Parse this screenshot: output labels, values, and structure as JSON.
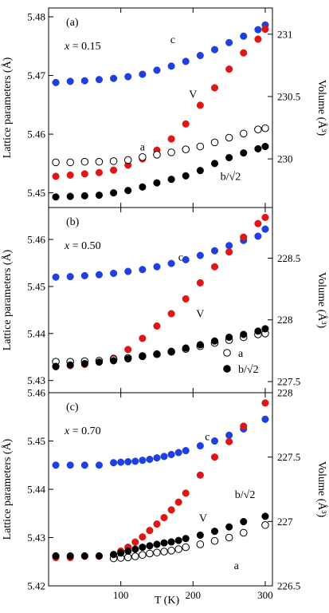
{
  "chart_data": [
    {
      "type": "scatter",
      "panel_label": "(a)",
      "composition": "x = 0.15",
      "ylabel_left": "Lattice parameters (Å)",
      "ylabel_right": "Volume (Å³)",
      "xlim": [
        0,
        310
      ],
      "ylim_left": [
        5.4475,
        5.4815
      ],
      "ylim_right": [
        229.61,
        231.21
      ],
      "yticks_left": [
        "5.45",
        "5.46",
        "5.47",
        "5.48"
      ],
      "yticks_right": [
        "230",
        "230.5",
        "231"
      ],
      "labels": {
        "c": "c",
        "V": "V",
        "a": "a",
        "b": "b/√2"
      },
      "series": [
        {
          "name": "c",
          "axis": "left",
          "color": "#1f3fe0",
          "marker": "filled",
          "points": [
            [
              10,
              5.4688
            ],
            [
              30,
              5.469
            ],
            [
              50,
              5.4691
            ],
            [
              70,
              5.4693
            ],
            [
              90,
              5.4695
            ],
            [
              110,
              5.4698
            ],
            [
              130,
              5.4702
            ],
            [
              150,
              5.4709
            ],
            [
              170,
              5.4716
            ],
            [
              190,
              5.4724
            ],
            [
              210,
              5.4734
            ],
            [
              230,
              5.4744
            ],
            [
              250,
              5.4756
            ],
            [
              270,
              5.4767
            ],
            [
              290,
              5.4778
            ],
            [
              300,
              5.4786
            ]
          ]
        },
        {
          "name": "V",
          "axis": "right",
          "color": "#e01515",
          "marker": "filled",
          "points": [
            [
              10,
              229.86
            ],
            [
              30,
              229.87
            ],
            [
              50,
              229.88
            ],
            [
              70,
              229.89
            ],
            [
              90,
              229.91
            ],
            [
              110,
              229.95
            ],
            [
              130,
              230.0
            ],
            [
              150,
              230.07
            ],
            [
              170,
              230.16
            ],
            [
              190,
              230.28
            ],
            [
              210,
              230.43
            ],
            [
              230,
              230.57
            ],
            [
              250,
              230.72
            ],
            [
              270,
              230.85
            ],
            [
              290,
              230.96
            ],
            [
              300,
              231.04
            ]
          ]
        },
        {
          "name": "a",
          "axis": "left",
          "color": "#000000",
          "marker": "open",
          "points": [
            [
              10,
              5.4552
            ],
            [
              30,
              5.4552
            ],
            [
              50,
              5.4553
            ],
            [
              70,
              5.4553
            ],
            [
              90,
              5.4554
            ],
            [
              110,
              5.4556
            ],
            [
              130,
              5.4561
            ],
            [
              150,
              5.4565
            ],
            [
              170,
              5.4569
            ],
            [
              190,
              5.4574
            ],
            [
              210,
              5.4579
            ],
            [
              230,
              5.4586
            ],
            [
              250,
              5.4594
            ],
            [
              270,
              5.4601
            ],
            [
              290,
              5.4608
            ],
            [
              300,
              5.461
            ]
          ]
        },
        {
          "name": "b/√2",
          "axis": "left",
          "color": "#000000",
          "marker": "filled",
          "points": [
            [
              10,
              5.4493
            ],
            [
              30,
              5.4494
            ],
            [
              50,
              5.4495
            ],
            [
              70,
              5.4496
            ],
            [
              90,
              5.45
            ],
            [
              110,
              5.4504
            ],
            [
              130,
              5.451
            ],
            [
              150,
              5.4517
            ],
            [
              170,
              5.4523
            ],
            [
              190,
              5.4529
            ],
            [
              210,
              5.4538
            ],
            [
              230,
              5.455
            ],
            [
              250,
              5.456
            ],
            [
              270,
              5.4568
            ],
            [
              290,
              5.4575
            ],
            [
              300,
              5.4579
            ]
          ]
        }
      ]
    },
    {
      "type": "scatter",
      "panel_label": "(b)",
      "composition": "x = 0.50",
      "ylabel_left": "Lattice parameters (Å)",
      "ylabel_right": "Volume (Å³)",
      "xlim": [
        0,
        310
      ],
      "ylim_left": [
        5.4274,
        5.4668
      ],
      "ylim_right": [
        227.41,
        228.91
      ],
      "yticks_left": [
        "5.43",
        "5.44",
        "5.45",
        "5.46"
      ],
      "yticks_right": [
        "227.5",
        "228",
        "228.5"
      ],
      "labels": {
        "c": "c",
        "V": "V",
        "legend_a": "a",
        "legend_b": "b/√2"
      },
      "series": [
        {
          "name": "c",
          "axis": "left",
          "color": "#1f3fe0",
          "marker": "filled",
          "points": [
            [
              10,
              5.452
            ],
            [
              30,
              5.4521
            ],
            [
              50,
              5.4523
            ],
            [
              70,
              5.4525
            ],
            [
              90,
              5.4528
            ],
            [
              110,
              5.4532
            ],
            [
              130,
              5.4536
            ],
            [
              150,
              5.4542
            ],
            [
              170,
              5.4549
            ],
            [
              190,
              5.4557
            ],
            [
              210,
              5.4566
            ],
            [
              230,
              5.4576
            ],
            [
              250,
              5.4587
            ],
            [
              270,
              5.4598
            ],
            [
              290,
              5.4607
            ],
            [
              300,
              5.4622
            ]
          ]
        },
        {
          "name": "V",
          "axis": "right",
          "color": "#e01515",
          "marker": "filled",
          "points": [
            [
              10,
              227.62
            ],
            [
              30,
              227.63
            ],
            [
              50,
              227.64
            ],
            [
              70,
              227.66
            ],
            [
              90,
              227.69
            ],
            [
              110,
              227.76
            ],
            [
              130,
              227.85
            ],
            [
              150,
              227.95
            ],
            [
              170,
              228.05
            ],
            [
              190,
              228.17
            ],
            [
              210,
              228.3
            ],
            [
              230,
              228.43
            ],
            [
              250,
              228.55
            ],
            [
              270,
              228.67
            ],
            [
              290,
              228.78
            ],
            [
              300,
              228.83
            ]
          ]
        },
        {
          "name": "a",
          "axis": "left",
          "color": "#000000",
          "marker": "open",
          "points": [
            [
              10,
              5.434
            ],
            [
              30,
              5.434
            ],
            [
              50,
              5.4341
            ],
            [
              70,
              5.4342
            ],
            [
              90,
              5.4345
            ],
            [
              110,
              5.4348
            ],
            [
              130,
              5.4352
            ],
            [
              150,
              5.4356
            ],
            [
              170,
              5.4361
            ],
            [
              190,
              5.4367
            ],
            [
              210,
              5.4373
            ],
            [
              230,
              5.438
            ],
            [
              250,
              5.4386
            ],
            [
              270,
              5.4392
            ],
            [
              290,
              5.4398
            ],
            [
              300,
              5.44
            ]
          ]
        },
        {
          "name": "b/√2",
          "axis": "left",
          "color": "#000000",
          "marker": "filled",
          "points": [
            [
              10,
              5.433
            ],
            [
              30,
              5.4333
            ],
            [
              50,
              5.4336
            ],
            [
              70,
              5.4339
            ],
            [
              90,
              5.4342
            ],
            [
              110,
              5.4346
            ],
            [
              130,
              5.4351
            ],
            [
              150,
              5.4356
            ],
            [
              170,
              5.4362
            ],
            [
              190,
              5.4369
            ],
            [
              210,
              5.4376
            ],
            [
              230,
              5.4384
            ],
            [
              250,
              5.4392
            ],
            [
              270,
              5.4398
            ],
            [
              290,
              5.4405
            ],
            [
              300,
              5.441
            ]
          ]
        }
      ]
    },
    {
      "type": "scatter",
      "panel_label": "(c)",
      "composition": "x = 0.70",
      "ylabel_left": "Lattice parameters (Å)",
      "ylabel_right": "Volume (Å³)",
      "xlabel": "T (K)",
      "xlim": [
        0,
        310
      ],
      "ylim_left": [
        5.42,
        5.46
      ],
      "ylim_right": [
        226.5,
        228.0
      ],
      "xticks": [
        "100",
        "200",
        "300"
      ],
      "yticks_left": [
        "5.42",
        "5.43",
        "5.44",
        "5.45",
        "5.46"
      ],
      "yticks_right": [
        "226.5",
        "227",
        "227.5",
        "228"
      ],
      "labels": {
        "c": "c",
        "V": "V",
        "a": "a",
        "b": "b/√2"
      },
      "series": [
        {
          "name": "c",
          "axis": "left",
          "color": "#1f3fe0",
          "marker": "filled",
          "points": [
            [
              10,
              5.445
            ],
            [
              30,
              5.445
            ],
            [
              50,
              5.445
            ],
            [
              70,
              5.445
            ],
            [
              90,
              5.4455
            ],
            [
              100,
              5.4456
            ],
            [
              110,
              5.4457
            ],
            [
              120,
              5.4458
            ],
            [
              130,
              5.446
            ],
            [
              140,
              5.4462
            ],
            [
              150,
              5.4465
            ],
            [
              160,
              5.4468
            ],
            [
              170,
              5.4472
            ],
            [
              180,
              5.4476
            ],
            [
              190,
              5.448
            ],
            [
              210,
              5.449
            ],
            [
              230,
              5.45
            ],
            [
              250,
              5.4512
            ],
            [
              270,
              5.4525
            ],
            [
              300,
              5.4545
            ]
          ]
        },
        {
          "name": "V",
          "axis": "right",
          "color": "#e01515",
          "marker": "filled",
          "points": [
            [
              10,
              226.72
            ],
            [
              30,
              226.72
            ],
            [
              50,
              226.73
            ],
            [
              70,
              226.73
            ],
            [
              90,
              226.74
            ],
            [
              100,
              226.77
            ],
            [
              110,
              226.8
            ],
            [
              120,
              226.84
            ],
            [
              130,
              226.88
            ],
            [
              140,
              226.93
            ],
            [
              150,
              226.98
            ],
            [
              160,
              227.03
            ],
            [
              170,
              227.09
            ],
            [
              180,
              227.15
            ],
            [
              190,
              227.22
            ],
            [
              210,
              227.36
            ],
            [
              230,
              227.5
            ],
            [
              250,
              227.62
            ],
            [
              270,
              227.74
            ],
            [
              300,
              227.92
            ]
          ]
        },
        {
          "name": "a",
          "axis": "left",
          "color": "#000000",
          "marker": "open",
          "points": [
            [
              90,
              5.4257
            ],
            [
              100,
              5.4258
            ],
            [
              110,
              5.4259
            ],
            [
              120,
              5.4261
            ],
            [
              130,
              5.4264
            ],
            [
              140,
              5.4267
            ],
            [
              150,
              5.4269
            ],
            [
              160,
              5.4271
            ],
            [
              170,
              5.4273
            ],
            [
              180,
              5.4276
            ],
            [
              190,
              5.428
            ],
            [
              210,
              5.4286
            ],
            [
              230,
              5.4293
            ],
            [
              250,
              5.43
            ],
            [
              270,
              5.431
            ],
            [
              300,
              5.4326
            ]
          ]
        },
        {
          "name": "b/√2",
          "axis": "left",
          "color": "#000000",
          "marker": "filled",
          "points": [
            [
              10,
              5.4262
            ],
            [
              30,
              5.4262
            ],
            [
              50,
              5.4262
            ],
            [
              70,
              5.4262
            ],
            [
              90,
              5.4265
            ],
            [
              100,
              5.4268
            ],
            [
              110,
              5.4272
            ],
            [
              120,
              5.4276
            ],
            [
              130,
              5.428
            ],
            [
              140,
              5.4283
            ],
            [
              150,
              5.4286
            ],
            [
              160,
              5.4289
            ],
            [
              170,
              5.4291
            ],
            [
              180,
              5.4294
            ],
            [
              190,
              5.4298
            ],
            [
              210,
              5.4305
            ],
            [
              230,
              5.4313
            ],
            [
              250,
              5.4322
            ],
            [
              270,
              5.4333
            ],
            [
              300,
              5.4344
            ]
          ]
        }
      ]
    }
  ]
}
